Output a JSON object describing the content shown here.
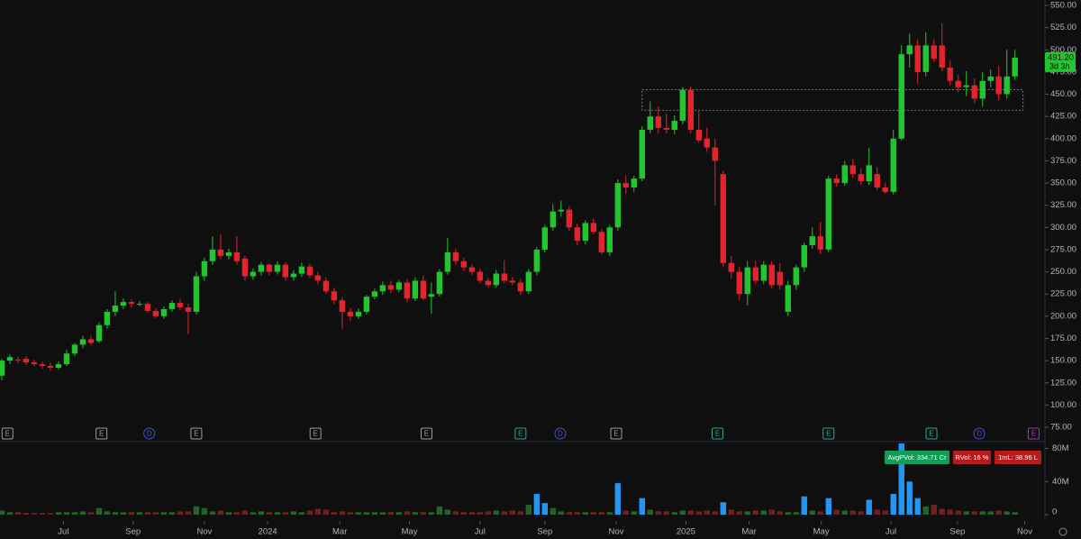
{
  "chart_data": {
    "type": "candlestick",
    "colors": {
      "up": "#22c52e",
      "down": "#e3242b",
      "volume": "#5d606b",
      "volume_high": "#2196f3",
      "zone": "#9a9a9a"
    },
    "candles": [
      [
        133,
        152,
        128,
        150
      ],
      [
        150,
        157,
        146,
        154
      ],
      [
        151,
        155,
        147,
        150
      ],
      [
        152,
        155,
        145,
        148
      ],
      [
        148,
        151,
        144,
        146
      ],
      [
        146,
        149,
        141,
        144
      ],
      [
        144,
        147,
        139,
        142
      ],
      [
        142,
        149,
        140,
        146
      ],
      [
        146,
        162,
        144,
        158
      ],
      [
        158,
        170,
        155,
        168
      ],
      [
        168,
        178,
        164,
        174
      ],
      [
        174,
        178,
        167,
        170
      ],
      [
        172,
        193,
        170,
        190
      ],
      [
        190,
        208,
        186,
        205
      ],
      [
        205,
        228,
        200,
        212
      ],
      [
        212,
        220,
        208,
        216
      ],
      [
        216,
        219,
        210,
        214
      ],
      [
        214,
        217,
        211,
        214
      ],
      [
        214,
        216,
        204,
        206
      ],
      [
        206,
        209,
        198,
        200
      ],
      [
        200,
        211,
        197,
        208
      ],
      [
        208,
        218,
        205,
        215
      ],
      [
        215,
        219,
        207,
        210
      ],
      [
        210,
        214,
        180,
        205
      ],
      [
        205,
        250,
        202,
        245
      ],
      [
        245,
        266,
        240,
        262
      ],
      [
        262,
        290,
        258,
        275
      ],
      [
        275,
        292,
        264,
        268
      ],
      [
        268,
        276,
        264,
        272
      ],
      [
        272,
        290,
        258,
        262
      ],
      [
        265,
        268,
        240,
        245
      ],
      [
        245,
        254,
        241,
        250
      ],
      [
        250,
        261,
        246,
        258
      ],
      [
        258,
        260,
        246,
        250
      ],
      [
        250,
        262,
        247,
        258
      ],
      [
        258,
        261,
        240,
        244
      ],
      [
        244,
        252,
        240,
        248
      ],
      [
        248,
        260,
        244,
        256
      ],
      [
        256,
        259,
        243,
        246
      ],
      [
        246,
        250,
        236,
        240
      ],
      [
        240,
        244,
        225,
        228
      ],
      [
        228,
        232,
        214,
        218
      ],
      [
        218,
        222,
        186,
        205
      ],
      [
        205,
        209,
        195,
        200
      ],
      [
        200,
        209,
        197,
        205
      ],
      [
        205,
        224,
        202,
        222
      ],
      [
        222,
        231,
        219,
        228
      ],
      [
        228,
        239,
        224,
        235
      ],
      [
        235,
        240,
        226,
        230
      ],
      [
        230,
        241,
        227,
        238
      ],
      [
        238,
        242,
        216,
        220
      ],
      [
        220,
        244,
        217,
        240
      ],
      [
        240,
        246,
        218,
        220
      ],
      [
        222,
        238,
        203,
        225
      ],
      [
        225,
        253,
        222,
        250
      ],
      [
        250,
        288,
        247,
        272
      ],
      [
        272,
        276,
        258,
        262
      ],
      [
        262,
        266,
        251,
        255
      ],
      [
        255,
        259,
        246,
        250
      ],
      [
        250,
        254,
        237,
        240
      ],
      [
        240,
        243,
        232,
        235
      ],
      [
        235,
        252,
        232,
        248
      ],
      [
        248,
        263,
        237,
        240
      ],
      [
        240,
        244,
        235,
        238
      ],
      [
        238,
        242,
        224,
        228
      ],
      [
        228,
        253,
        225,
        250
      ],
      [
        250,
        278,
        246,
        275
      ],
      [
        275,
        303,
        272,
        300
      ],
      [
        300,
        326,
        296,
        318
      ],
      [
        318,
        330,
        312,
        320
      ],
      [
        320,
        324,
        296,
        300
      ],
      [
        300,
        304,
        280,
        285
      ],
      [
        285,
        308,
        281,
        305
      ],
      [
        305,
        310,
        292,
        295
      ],
      [
        295,
        298,
        270,
        272
      ],
      [
        272,
        303,
        268,
        300
      ],
      [
        300,
        354,
        296,
        350
      ],
      [
        350,
        358,
        338,
        345
      ],
      [
        345,
        358,
        340,
        355
      ],
      [
        355,
        414,
        352,
        410
      ],
      [
        410,
        442,
        406,
        425
      ],
      [
        425,
        436,
        406,
        412
      ],
      [
        412,
        428,
        406,
        410
      ],
      [
        410,
        426,
        405,
        420
      ],
      [
        420,
        458,
        416,
        455
      ],
      [
        455,
        459,
        406,
        410
      ],
      [
        410,
        432,
        395,
        398
      ],
      [
        400,
        412,
        385,
        390
      ],
      [
        390,
        400,
        325,
        375
      ],
      [
        360,
        364,
        255,
        260
      ],
      [
        260,
        268,
        242,
        250
      ],
      [
        250,
        256,
        218,
        225
      ],
      [
        225,
        262,
        212,
        255
      ],
      [
        255,
        262,
        236,
        240
      ],
      [
        240,
        262,
        236,
        258
      ],
      [
        258,
        262,
        231,
        235
      ],
      [
        250,
        260,
        230,
        235
      ],
      [
        205,
        240,
        200,
        235
      ],
      [
        235,
        258,
        230,
        255
      ],
      [
        255,
        283,
        250,
        280
      ],
      [
        280,
        300,
        276,
        290
      ],
      [
        290,
        306,
        270,
        275
      ],
      [
        275,
        358,
        272,
        355
      ],
      [
        355,
        360,
        346,
        350
      ],
      [
        350,
        375,
        347,
        370
      ],
      [
        370,
        377,
        356,
        360
      ],
      [
        360,
        366,
        348,
        352
      ],
      [
        352,
        390,
        348,
        370
      ],
      [
        360,
        368,
        342,
        345
      ],
      [
        345,
        350,
        338,
        340
      ],
      [
        340,
        410,
        337,
        400
      ],
      [
        400,
        505,
        398,
        495
      ],
      [
        495,
        518,
        480,
        505
      ],
      [
        505,
        512,
        462,
        475
      ],
      [
        475,
        520,
        470,
        505
      ],
      [
        505,
        512,
        486,
        490
      ],
      [
        505,
        530,
        476,
        480
      ],
      [
        480,
        488,
        460,
        465
      ],
      [
        465,
        472,
        452,
        458
      ],
      [
        458,
        476,
        448,
        460
      ],
      [
        460,
        468,
        440,
        445
      ],
      [
        445,
        475,
        436,
        465
      ],
      [
        465,
        478,
        458,
        470
      ],
      [
        470,
        482,
        443,
        450
      ],
      [
        450,
        500,
        445,
        470
      ],
      [
        470,
        500,
        466,
        491.2
      ]
    ],
    "volumes": [
      5,
      3,
      3,
      2,
      2,
      2,
      2,
      3,
      3,
      3,
      4,
      3,
      8,
      4,
      3,
      3,
      3,
      3,
      3,
      3,
      3,
      3,
      4,
      4,
      10,
      8,
      4,
      5,
      3,
      3,
      5,
      3,
      4,
      3,
      3,
      3,
      4,
      3,
      5,
      7,
      6,
      3,
      4,
      3,
      3,
      3,
      3,
      3,
      3,
      3,
      4,
      3,
      3,
      3,
      10,
      6,
      4,
      3,
      3,
      3,
      4,
      5,
      4,
      5,
      4,
      12,
      25,
      14,
      8,
      4,
      3,
      3,
      3,
      3,
      3,
      3,
      38,
      5,
      4,
      20,
      6,
      4,
      4,
      3,
      5,
      5,
      4,
      5,
      4,
      15,
      6,
      4,
      4,
      5,
      5,
      6,
      4,
      3,
      3,
      22,
      5,
      4,
      20,
      6,
      5,
      5,
      4,
      18,
      6,
      5,
      25,
      86,
      40,
      20,
      10,
      12,
      7,
      6,
      5,
      4,
      4,
      4,
      4,
      5,
      4,
      3
    ],
    "ylim": [
      75,
      550
    ],
    "yticks": [
      {
        "value": 75,
        "label": "75.00"
      },
      {
        "value": 100,
        "label": "100.00"
      },
      {
        "value": 125,
        "label": "125.00"
      },
      {
        "value": 150,
        "label": "150.00"
      },
      {
        "value": 175,
        "label": "175.00"
      },
      {
        "value": 200,
        "label": "200.00"
      },
      {
        "value": 225,
        "label": "225.00"
      },
      {
        "value": 250,
        "label": "250.00"
      },
      {
        "value": 275,
        "label": "275.00"
      },
      {
        "value": 300,
        "label": "300.00"
      },
      {
        "value": 325,
        "label": "325.00"
      },
      {
        "value": 350,
        "label": "350.00"
      },
      {
        "value": 375,
        "label": "375.00"
      },
      {
        "value": 400,
        "label": "400.00"
      },
      {
        "value": 425,
        "label": "425.00"
      },
      {
        "value": 450,
        "label": "450.00"
      },
      {
        "value": 475,
        "label": "475.00"
      },
      {
        "value": 500,
        "label": "500.00"
      },
      {
        "value": 525,
        "label": "525.00"
      },
      {
        "value": 550,
        "label": "550.00"
      }
    ],
    "y2lim": [
      0,
      86
    ],
    "y2ticks": [
      0,
      {
        "value": 40,
        "label": "40M"
      },
      {
        "value": 80,
        "label": "80M"
      }
    ],
    "xlim": [
      -0.22,
      128.7
    ],
    "xticks": [
      {
        "value": 7.6,
        "label": "Jul"
      },
      {
        "value": 16.2,
        "label": "Sep"
      },
      {
        "value": 25,
        "label": "Nov"
      },
      {
        "value": 32.8,
        "label": "2024"
      },
      {
        "value": 41.7,
        "label": "Mar"
      },
      {
        "value": 50.3,
        "label": "May"
      },
      {
        "value": 59,
        "label": "Jul"
      },
      {
        "value": 67,
        "label": "Sep"
      },
      {
        "value": 75.8,
        "label": "Nov"
      },
      {
        "value": 84.4,
        "label": "2025"
      },
      {
        "value": 92.2,
        "label": "Mar"
      },
      {
        "value": 101.1,
        "label": "May"
      },
      {
        "value": 109.7,
        "label": "Jul"
      },
      {
        "value": 117.9,
        "label": "Sep"
      },
      {
        "value": 126.2,
        "label": "Nov"
      }
    ],
    "zone": {
      "x": [
        79,
        126
      ],
      "y": [
        432,
        455
      ]
    },
    "last_price": {
      "value": 491.2,
      "label": "491.20"
    },
    "countdown": "3d 3h",
    "stats": [
      {
        "text": "AvgPVol: 334.71 Cr",
        "color": "#0f9d58"
      },
      {
        "text": "RVol: 16 %",
        "color": "#b71c1c"
      },
      {
        "text": "1mL: 38.96 L",
        "color": "#b71c1c"
      }
    ],
    "events": [
      {
        "label": "E",
        "x": 0.7,
        "color": "#9e9e9e"
      },
      {
        "label": "E",
        "x": 12.3,
        "color": "#9e9e9e"
      },
      {
        "label": "D",
        "x": 18.2,
        "color": "#3f51e0"
      },
      {
        "label": "E",
        "x": 24,
        "color": "#9e9e9e"
      },
      {
        "label": "E",
        "x": 38.7,
        "color": "#9e9e9e"
      },
      {
        "label": "E",
        "x": 52.4,
        "color": "#9e9e9e"
      },
      {
        "label": "E",
        "x": 64,
        "color": "#26a69a"
      },
      {
        "label": "D",
        "x": 68.9,
        "color": "#3f51e0"
      },
      {
        "label": "E",
        "x": 75.8,
        "color": "#9e9e9e"
      },
      {
        "label": "E",
        "x": 88.3,
        "color": "#26a69a"
      },
      {
        "label": "E",
        "x": 102,
        "color": "#26a69a"
      },
      {
        "label": "E",
        "x": 114.7,
        "color": "#26a69a"
      },
      {
        "label": "D",
        "x": 120.6,
        "color": "#3f51e0"
      },
      {
        "label": "E",
        "x": 127.3,
        "color": "#c026d3"
      }
    ]
  }
}
